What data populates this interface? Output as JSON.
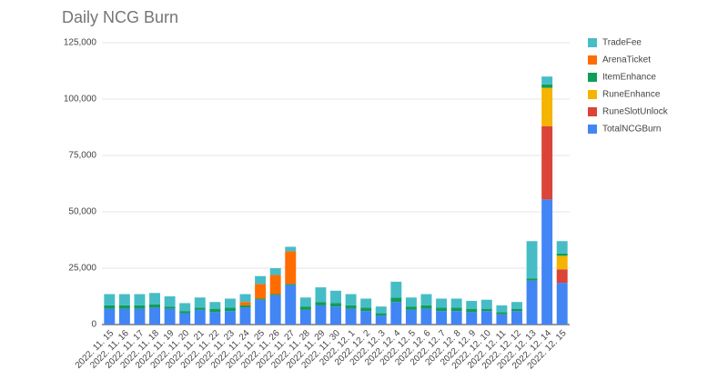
{
  "chart_data": {
    "type": "stacked-bar",
    "title": "Daily NCG Burn",
    "categories": [
      "2022. 11. 15",
      "2022. 11. 16",
      "2022. 11. 17",
      "2022. 11. 18",
      "2022. 11. 19",
      "2022. 11. 20",
      "2022. 11. 21",
      "2022. 11. 22",
      "2022. 11. 23",
      "2022. 11. 24",
      "2022. 11. 25",
      "2022. 11. 26",
      "2022. 11. 27",
      "2022. 11. 28",
      "2022. 11. 29",
      "2022. 11. 30",
      "2022. 12. 1",
      "2022. 12. 2",
      "2022. 12. 3",
      "2022. 12. 4",
      "2022. 12. 5",
      "2022. 12. 6",
      "2022. 12. 7",
      "2022. 12. 8",
      "2022. 12. 9",
      "2022. 12. 10",
      "2022. 12. 11",
      "2022. 12. 12",
      "2022. 12. 13",
      "2022. 12. 14",
      "2022. 12. 15"
    ],
    "series": [
      {
        "name": "TotalNCGBurn",
        "color": "#4285f4",
        "values": [
          7000,
          7000,
          7000,
          7500,
          7000,
          5000,
          6500,
          5500,
          6000,
          7500,
          11000,
          13000,
          17500,
          6500,
          8500,
          8000,
          7000,
          6000,
          4000,
          10000,
          6500,
          7000,
          6000,
          6000,
          5500,
          6000,
          4500,
          6000,
          19500,
          55500,
          18500
        ]
      },
      {
        "name": "RuneSlotUnlock",
        "color": "#db4437",
        "values": [
          0,
          0,
          0,
          0,
          0,
          0,
          0,
          0,
          0,
          0,
          0,
          0,
          0,
          0,
          0,
          0,
          0,
          0,
          0,
          0,
          0,
          0,
          0,
          0,
          0,
          0,
          0,
          0,
          0,
          32500,
          6000
        ]
      },
      {
        "name": "RuneEnhance",
        "color": "#f4b400",
        "values": [
          0,
          0,
          0,
          0,
          0,
          0,
          0,
          0,
          0,
          0,
          0,
          0,
          0,
          0,
          0,
          0,
          0,
          0,
          0,
          0,
          0,
          0,
          0,
          0,
          0,
          0,
          0,
          0,
          0,
          17000,
          6000
        ]
      },
      {
        "name": "ItemEnhance",
        "color": "#0f9d58",
        "values": [
          1500,
          1500,
          1500,
          1500,
          1000,
          1000,
          1000,
          1500,
          1500,
          1000,
          500,
          500,
          500,
          1500,
          1500,
          1500,
          1500,
          1500,
          1000,
          2000,
          1500,
          1500,
          1500,
          1500,
          1500,
          1000,
          1000,
          1000,
          1000,
          1500,
          1000
        ]
      },
      {
        "name": "ArenaTicket",
        "color": "#ff6d01",
        "values": [
          0,
          0,
          0,
          0,
          0,
          0,
          0,
          0,
          0,
          1500,
          6500,
          8500,
          14500,
          0,
          0,
          0,
          0,
          0,
          0,
          0,
          0,
          0,
          0,
          0,
          0,
          0,
          0,
          0,
          0,
          0,
          0
        ]
      },
      {
        "name": "TradeFee",
        "color": "#46bdc6",
        "values": [
          5000,
          5000,
          5000,
          5000,
          4500,
          3500,
          4500,
          3000,
          4000,
          3500,
          3500,
          3000,
          2000,
          4000,
          6500,
          5500,
          5000,
          4000,
          3000,
          7000,
          4000,
          5000,
          4000,
          4000,
          3500,
          4000,
          3000,
          3000,
          16500,
          3500,
          5500
        ]
      }
    ],
    "ylim": [
      0,
      125000
    ],
    "yticks": [
      0,
      {
        "value": 25000,
        "label": "25,000"
      },
      {
        "value": 50000,
        "label": "50,000"
      },
      {
        "value": 75000,
        "label": "75,000"
      },
      {
        "value": 100000,
        "label": "100,000"
      },
      {
        "value": 125000,
        "label": "125,000"
      }
    ],
    "grid": true,
    "legend": "right"
  }
}
